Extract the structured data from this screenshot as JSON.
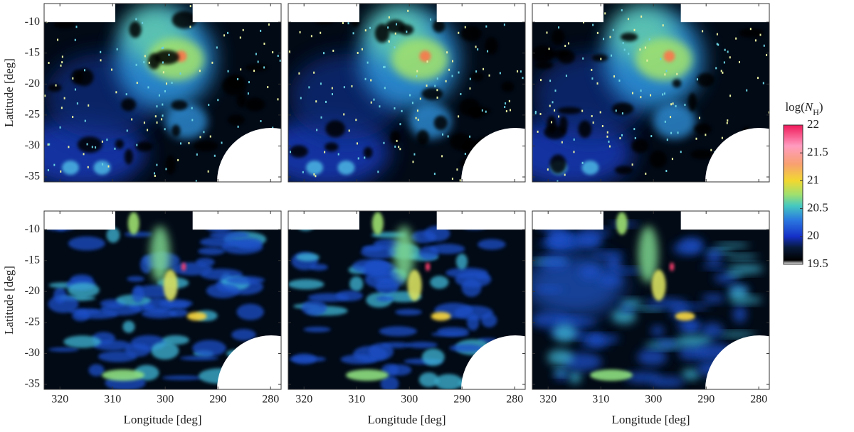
{
  "chart_data": [
    {
      "type": "heatmap",
      "xlim": [
        323,
        278
      ],
      "ylim": [
        -35.8,
        -7
      ],
      "xticks": [
        320,
        310,
        300,
        290,
        280
      ],
      "yticks": [
        -10,
        -15,
        -20,
        -25,
        -30,
        -35
      ],
      "ylabel": "Latitude [deg]"
    },
    {
      "type": "heatmap",
      "xlim": [
        323,
        278
      ],
      "ylim": [
        -35.8,
        -7
      ],
      "xticks": [
        320,
        310,
        300,
        290,
        280
      ],
      "yticks": [
        -10,
        -15,
        -20,
        -25,
        -30,
        -35
      ]
    },
    {
      "type": "heatmap",
      "xlim": [
        323,
        278
      ],
      "ylim": [
        -35.8,
        -7
      ],
      "xticks": [
        320,
        310,
        300,
        290,
        280
      ],
      "yticks": [
        -10,
        -15,
        -20,
        -25,
        -30,
        -35
      ]
    },
    {
      "type": "heatmap",
      "xlim": [
        323,
        278
      ],
      "ylim": [
        -35.8,
        -7
      ],
      "xticks": [
        320,
        310,
        300,
        290,
        280
      ],
      "yticks": [
        -10,
        -15,
        -20,
        -25,
        -30,
        -35
      ],
      "ylabel": "Latitude [deg]",
      "xlabel": "Longitude [deg]"
    },
    {
      "type": "heatmap",
      "xlim": [
        323,
        278
      ],
      "ylim": [
        -35.8,
        -7
      ],
      "xticks": [
        320,
        310,
        300,
        290,
        280
      ],
      "yticks": [
        -10,
        -15,
        -20,
        -25,
        -30,
        -35
      ],
      "xlabel": "Longitude [deg]"
    },
    {
      "type": "heatmap",
      "xlim": [
        323,
        278
      ],
      "ylim": [
        -35.8,
        -7
      ],
      "xticks": [
        320,
        310,
        300,
        290,
        280
      ],
      "yticks": [
        -10,
        -15,
        -20,
        -25,
        -30,
        -35
      ],
      "xlabel": "Longitude [deg]"
    }
  ],
  "colorbar": {
    "label": [
      "log(",
      "N",
      "H",
      ")"
    ],
    "lim": [
      19.5,
      22
    ],
    "ticks": [
      19.5,
      20,
      20.5,
      21,
      21.5,
      22
    ]
  }
}
